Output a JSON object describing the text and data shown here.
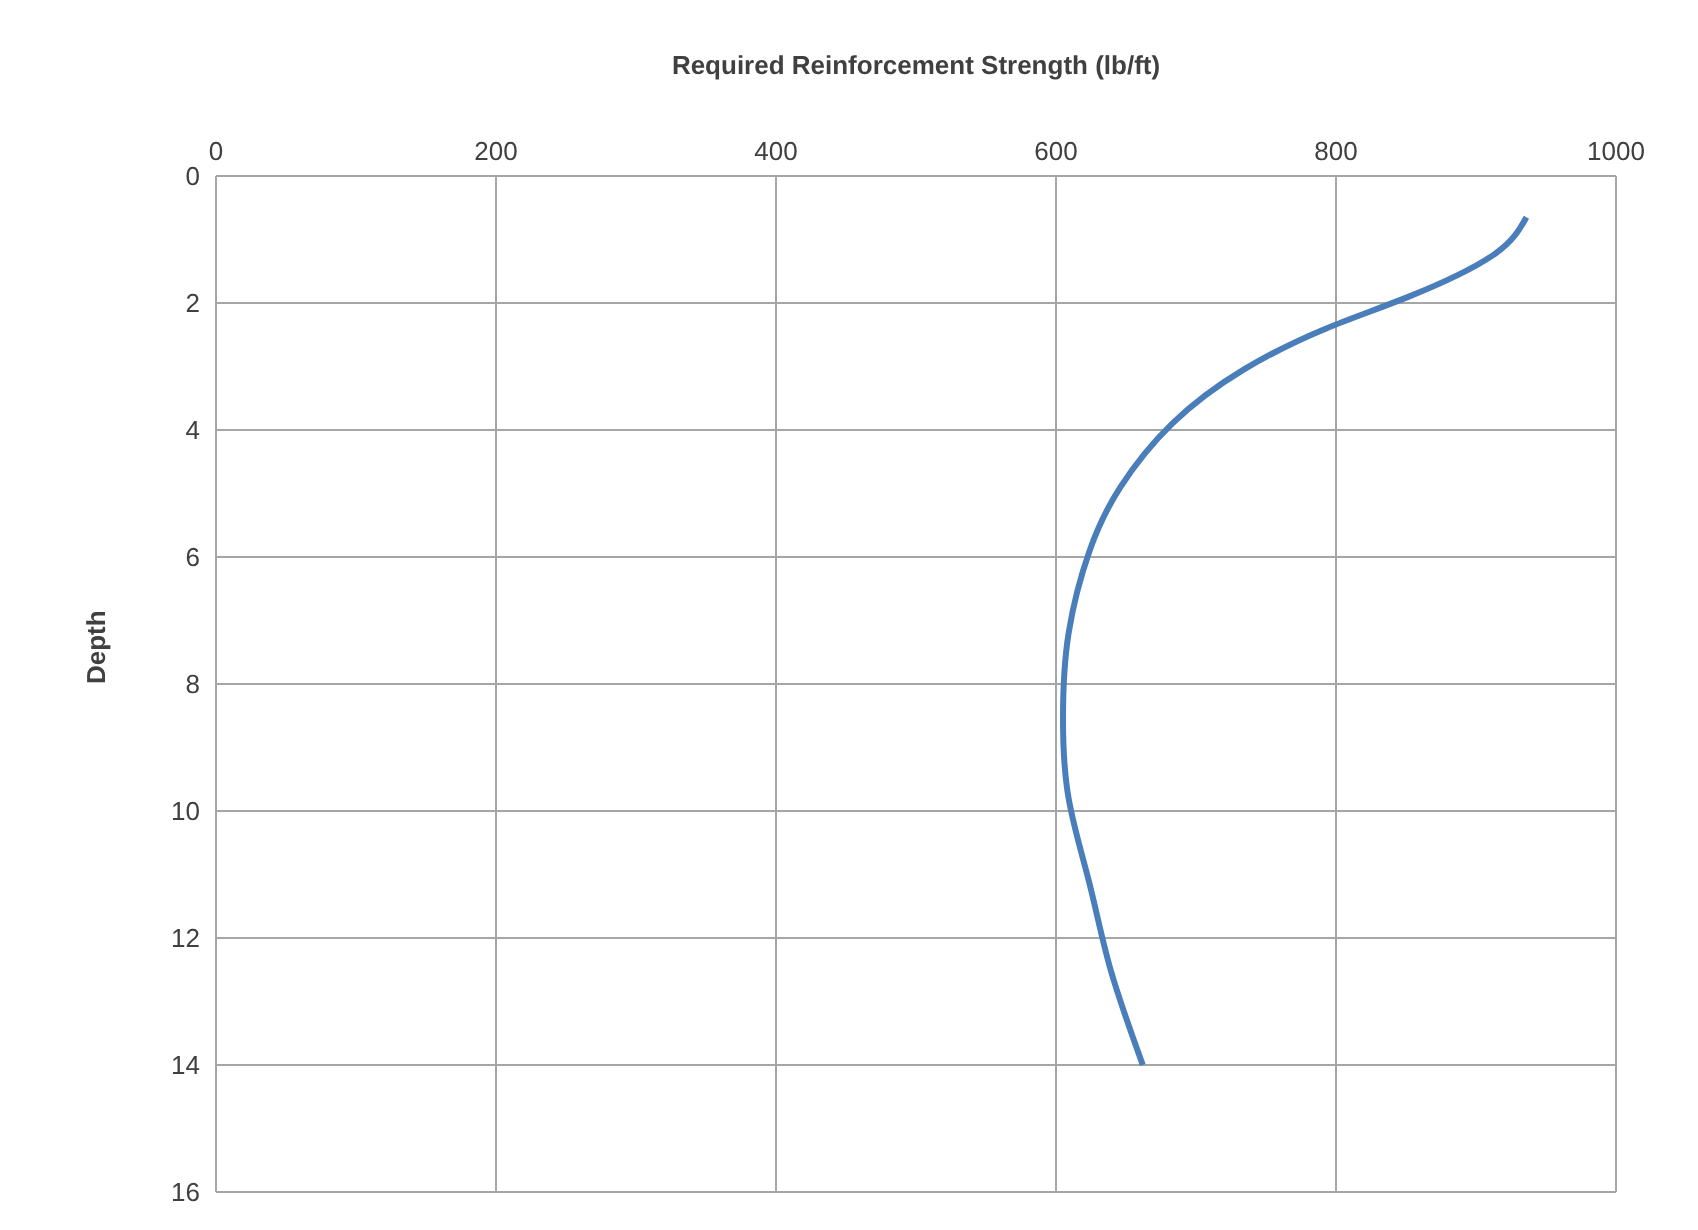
{
  "chart_data": {
    "type": "line",
    "xlabel": "Required Reinforcement Strength (lb/ft)",
    "ylabel": "Depth",
    "x": [
      936,
      912,
      852,
      793,
      734,
      683,
      646,
      624,
      609,
      605,
      609,
      624,
      639,
      662
    ],
    "series": [
      {
        "color": "#4a7ebb",
        "values": [
          0.65,
          1.25,
          1.9,
          2.4,
          3.05,
          3.9,
          4.9,
          5.9,
          7.2,
          8.5,
          9.8,
          11.15,
          12.5,
          14
        ]
      }
    ],
    "xlim": [
      0,
      1000
    ],
    "xticks": [
      0,
      200,
      400,
      600,
      800,
      1000
    ],
    "ylim": [
      16,
      0
    ],
    "yticks": [
      0,
      2,
      4,
      6,
      8,
      10,
      12,
      14,
      16
    ],
    "grid": true,
    "legend": false,
    "marker": "none",
    "line_style": "solid"
  }
}
